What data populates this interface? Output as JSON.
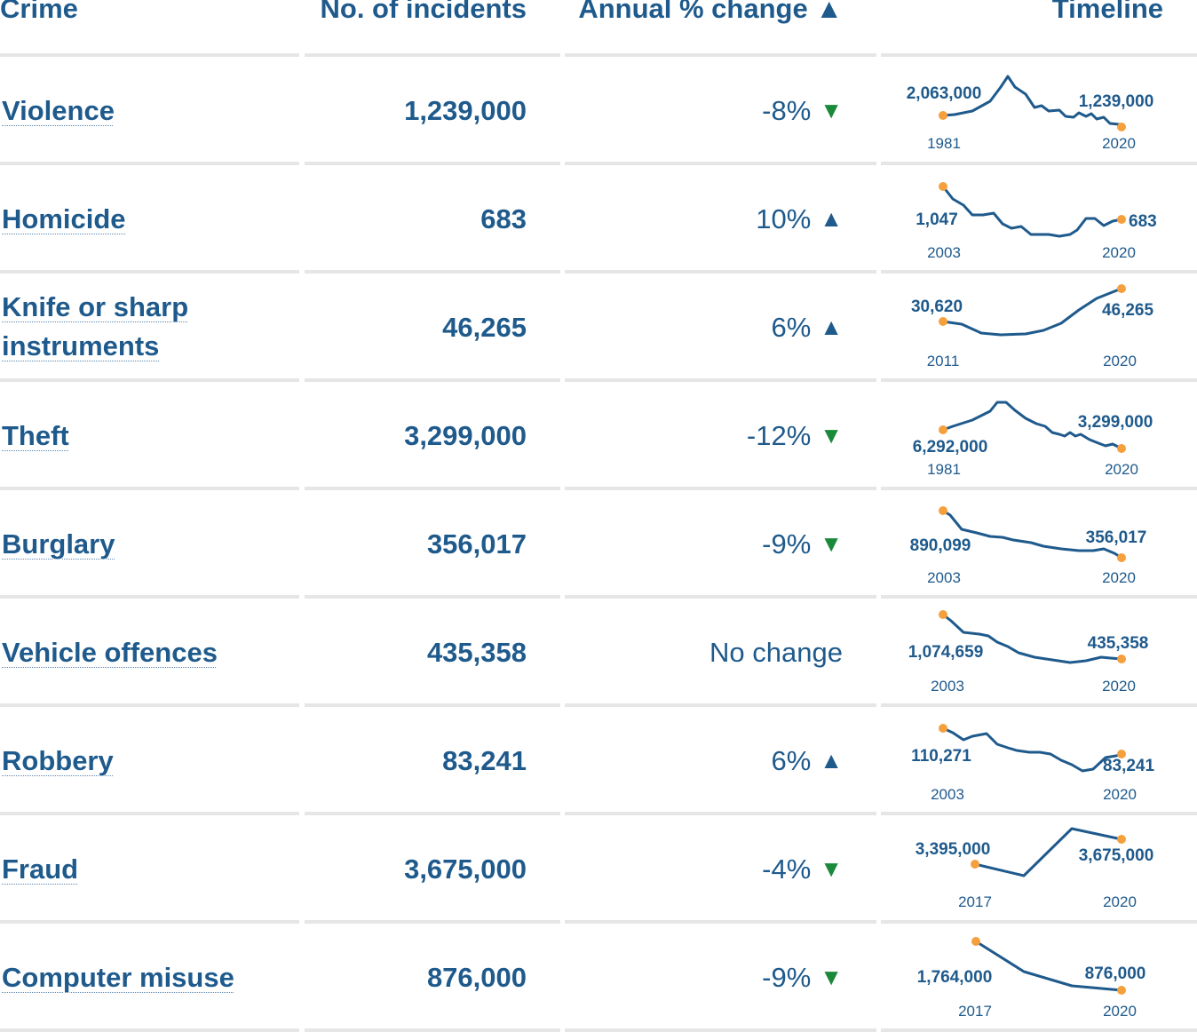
{
  "header": {
    "crime": "Crime",
    "incidents": "No. of incidents",
    "change": "Annual % change",
    "change_arrow": "▲",
    "timeline": "Timeline"
  },
  "colors": {
    "text": "#1f5a8c",
    "line": "#1f5a8c",
    "dot": "#f5a03c",
    "up": "#1f5a8c",
    "down": "#1a8a3a",
    "divider": "#e6e6e6"
  },
  "rows": [
    {
      "crime": "Violence",
      "incidents": "1,239,000",
      "change": "-8%",
      "arrow": "▼",
      "direction": "down",
      "timeline": {
        "start_label": "2,063,000",
        "end_label": "1,239,000",
        "start_year": "1981",
        "end_year": "2020"
      }
    },
    {
      "crime": "Homicide",
      "incidents": "683",
      "change": "10%",
      "arrow": "▲",
      "direction": "up",
      "timeline": {
        "start_label": "1,047",
        "end_label": "683",
        "start_year": "2003",
        "end_year": "2020"
      }
    },
    {
      "crime": "Knife or sharp instruments",
      "incidents": "46,265",
      "change": "6%",
      "arrow": "▲",
      "direction": "up",
      "timeline": {
        "start_label": "30,620",
        "end_label": "46,265",
        "start_year": "2011",
        "end_year": "2020"
      }
    },
    {
      "crime": "Theft",
      "incidents": "3,299,000",
      "change": "-12%",
      "arrow": "▼",
      "direction": "down",
      "timeline": {
        "start_label": "6,292,000",
        "end_label": "3,299,000",
        "start_year": "1981",
        "end_year": "2020"
      }
    },
    {
      "crime": "Burglary",
      "incidents": "356,017",
      "change": "-9%",
      "arrow": "▼",
      "direction": "down",
      "timeline": {
        "start_label": "890,099",
        "end_label": "356,017",
        "start_year": "2003",
        "end_year": "2020"
      }
    },
    {
      "crime": "Vehicle offences",
      "incidents": "435,358",
      "change": "No change",
      "arrow": "",
      "direction": "none",
      "timeline": {
        "start_label": "1,074,659",
        "end_label": "435,358",
        "start_year": "2003",
        "end_year": "2020"
      }
    },
    {
      "crime": "Robbery",
      "incidents": "83,241",
      "change": "6%",
      "arrow": "▲",
      "direction": "up",
      "timeline": {
        "start_label": "110,271",
        "end_label": "83,241",
        "start_year": "2003",
        "end_year": "2020"
      }
    },
    {
      "crime": "Fraud",
      "incidents": "3,675,000",
      "change": "-4%",
      "arrow": "▼",
      "direction": "down",
      "timeline": {
        "start_label": "3,395,000",
        "end_label": "3,675,000",
        "start_year": "2017",
        "end_year": "2020"
      }
    },
    {
      "crime": "Computer misuse",
      "incidents": "876,000",
      "change": "-9%",
      "arrow": "▼",
      "direction": "down",
      "timeline": {
        "start_label": "1,764,000",
        "end_label": "876,000",
        "start_year": "2017",
        "end_year": "2020"
      }
    }
  ]
}
